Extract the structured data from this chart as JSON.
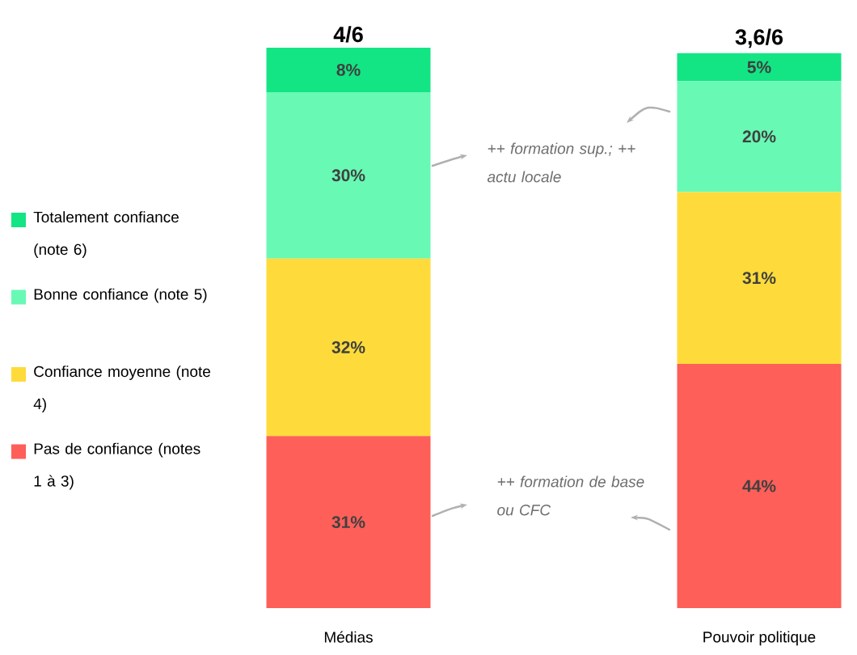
{
  "chart_data": {
    "type": "bar",
    "stacked": true,
    "categories": [
      "Médias",
      "Pouvoir politique"
    ],
    "series": [
      {
        "name": "Pas de confiance (notes 1 à 3)",
        "color": "#fe5f58",
        "values": [
          31,
          44
        ],
        "value_labels": [
          "31%",
          "44%"
        ]
      },
      {
        "name": "Confiance moyenne (note 4)",
        "color": "#fedb3a",
        "values": [
          32,
          31
        ],
        "value_labels": [
          "32%",
          "31%"
        ]
      },
      {
        "name": "Bonne confiance (note 5)",
        "color": "#68f9b4",
        "values": [
          30,
          20
        ],
        "value_labels": [
          "30%",
          "20%"
        ]
      },
      {
        "name": "Totalement confiance (note 6)",
        "color": "#13e584",
        "values": [
          8,
          5
        ],
        "value_labels": [
          "8%",
          "5%"
        ]
      }
    ],
    "legend": "left",
    "annotations": [
      "4/6",
      "3,6/6",
      "++ formation sup.; ++ actu locale",
      "++ formation de base ou CFC"
    ]
  }
}
